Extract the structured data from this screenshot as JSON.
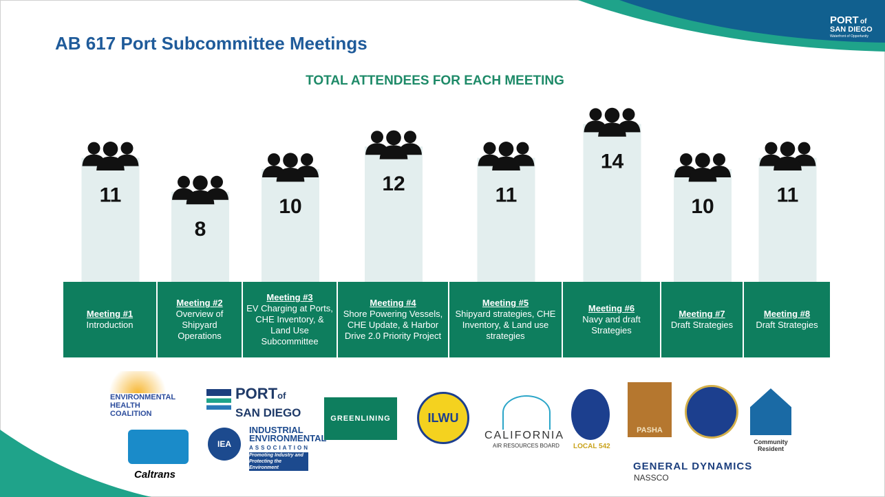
{
  "chart_data": {
    "type": "bar",
    "title": "AB 617 Port Subcommittee Meetings",
    "subtitle": "TOTAL ATTENDEES FOR EACH MEETING",
    "categories": [
      "Meeting #1",
      "Meeting #2",
      "Meeting #3",
      "Meeting #4",
      "Meeting #5",
      "Meeting #6",
      "Meeting #7",
      "Meeting #8"
    ],
    "descriptions": [
      "Introduction",
      "Overview of Shipyard Operations",
      "EV Charging at Ports, CHE Inventory, & Land Use Subcommittee",
      "Shore Powering Vessels, CHE Update, & Harbor Drive 2.0 Priority Project",
      "Shipyard strategies, CHE Inventory, & Land use strategies",
      "Navy and draft Strategies",
      "Draft Strategies",
      "Draft Strategies"
    ],
    "values": [
      11,
      8,
      10,
      12,
      11,
      14,
      10,
      11
    ],
    "color": "#e3eeee",
    "header_logo": [
      "PORT",
      "of",
      "SAN DIEGO",
      "Waterfront of Opportunity"
    ],
    "logos": [
      "ENVIRONMENTAL HEALTH COALITION",
      "PORT",
      "of",
      "SAN DIEGO",
      "GREENLINING",
      "ILWU",
      "CALIFORNIA",
      "AIR RESOURCES BOARD",
      "LOCAL 542",
      "PASHA",
      "Community Resident",
      "Caltrans",
      "IEA",
      "INDUSTRIAL",
      "ENVIRONMENTAL",
      "ASSOCIATION",
      "Promoting Industry and Protecting the Environment",
      "GENERAL DYNAMICS",
      "NASSCO"
    ]
  }
}
